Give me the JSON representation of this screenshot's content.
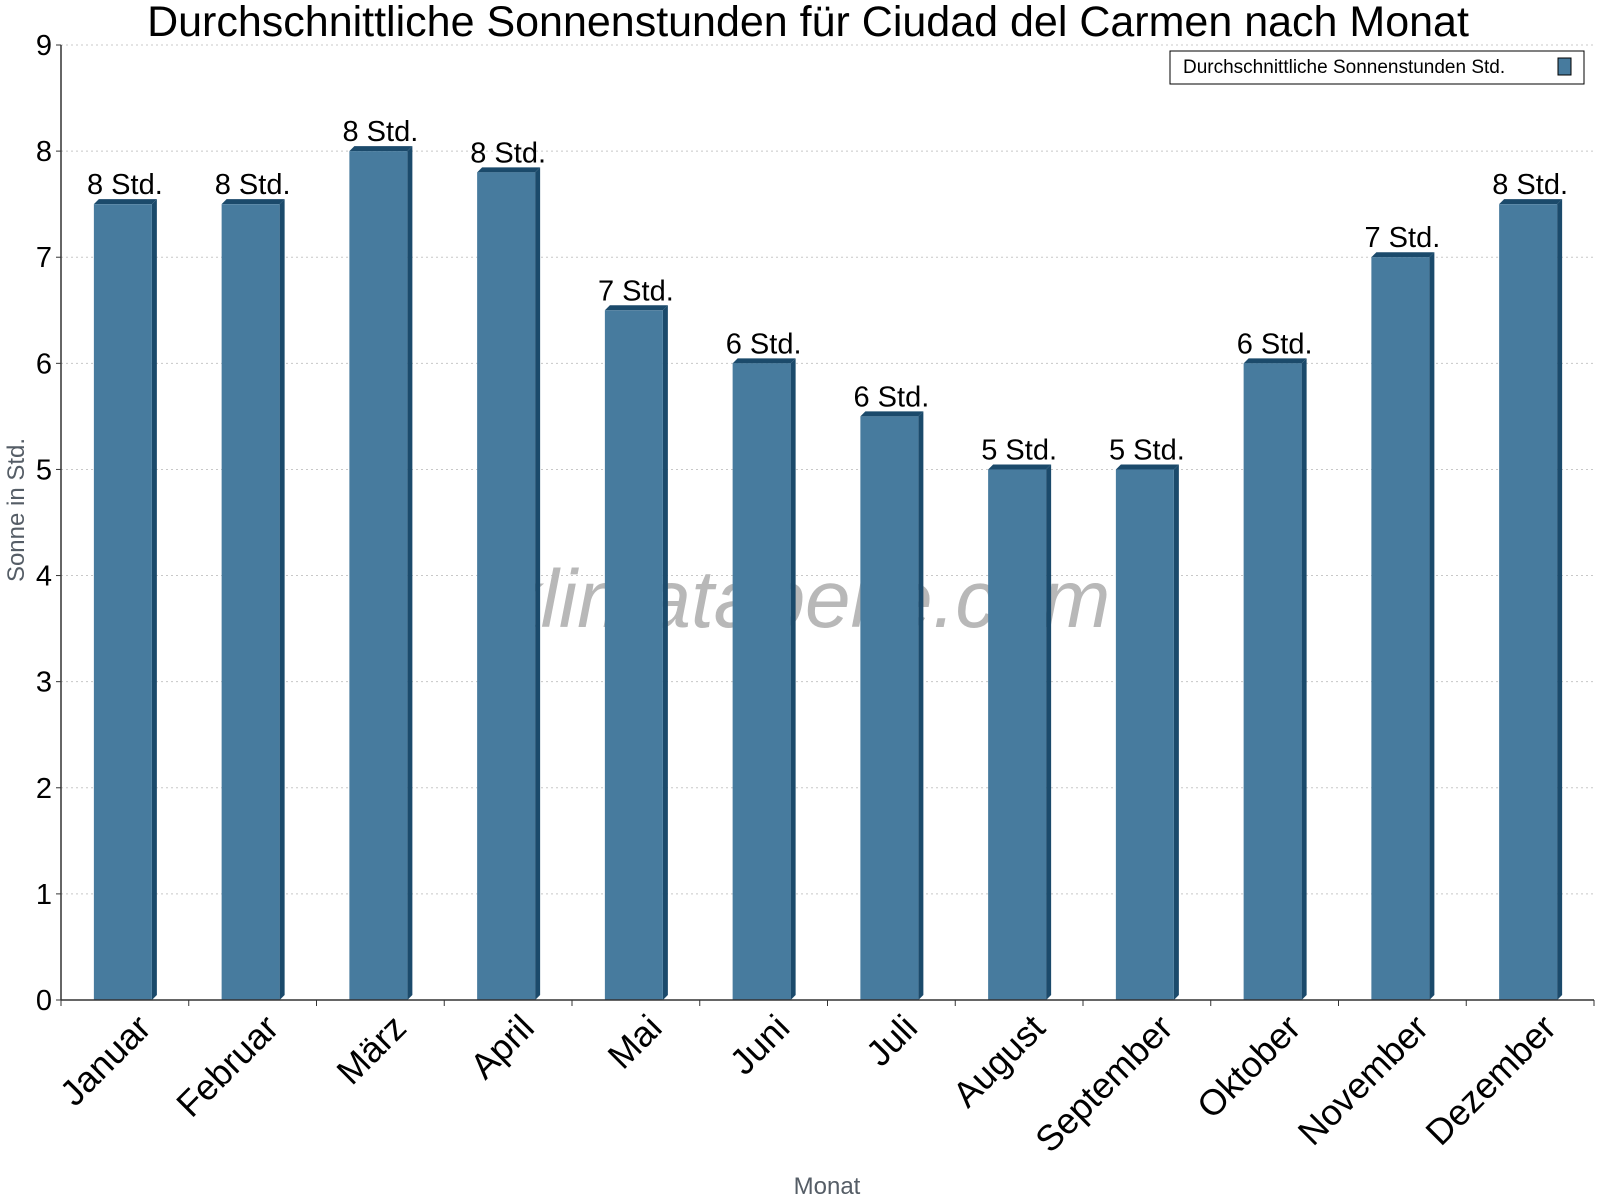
{
  "chart_data": {
    "type": "bar",
    "title": "Durchschnittliche Sonnenstunden für Ciudad del Carmen nach Monat",
    "xlabel": "Monat",
    "ylabel": "Sonne in Std.",
    "ylim": [
      0,
      9
    ],
    "yticks": [
      "0",
      "1",
      "2",
      "3",
      "4",
      "5",
      "6",
      "7",
      "8",
      "9"
    ],
    "grid": true,
    "legend_position": "top-right",
    "categories": [
      "Januar",
      "Februar",
      "März",
      "April",
      "Mai",
      "Juni",
      "Juli",
      "August",
      "September",
      "Oktober",
      "November",
      "Dezember"
    ],
    "series": [
      {
        "name": "Durchschnittliche Sonnenstunden Std.",
        "values": [
          7.5,
          7.5,
          8.0,
          7.8,
          6.5,
          6.0,
          5.5,
          5.0,
          5.0,
          6.0,
          7.0,
          7.5
        ],
        "data_labels": [
          "8 Std.",
          "8 Std.",
          "8 Std.",
          "8 Std.",
          "7 Std.",
          "6 Std.",
          "6 Std.",
          "5 Std.",
          "5 Std.",
          "6 Std.",
          "7 Std.",
          "8 Std."
        ],
        "color": "#477b9e",
        "edge_color": "#1b4a6b"
      }
    ]
  },
  "watermark": "klimatabelle.com"
}
